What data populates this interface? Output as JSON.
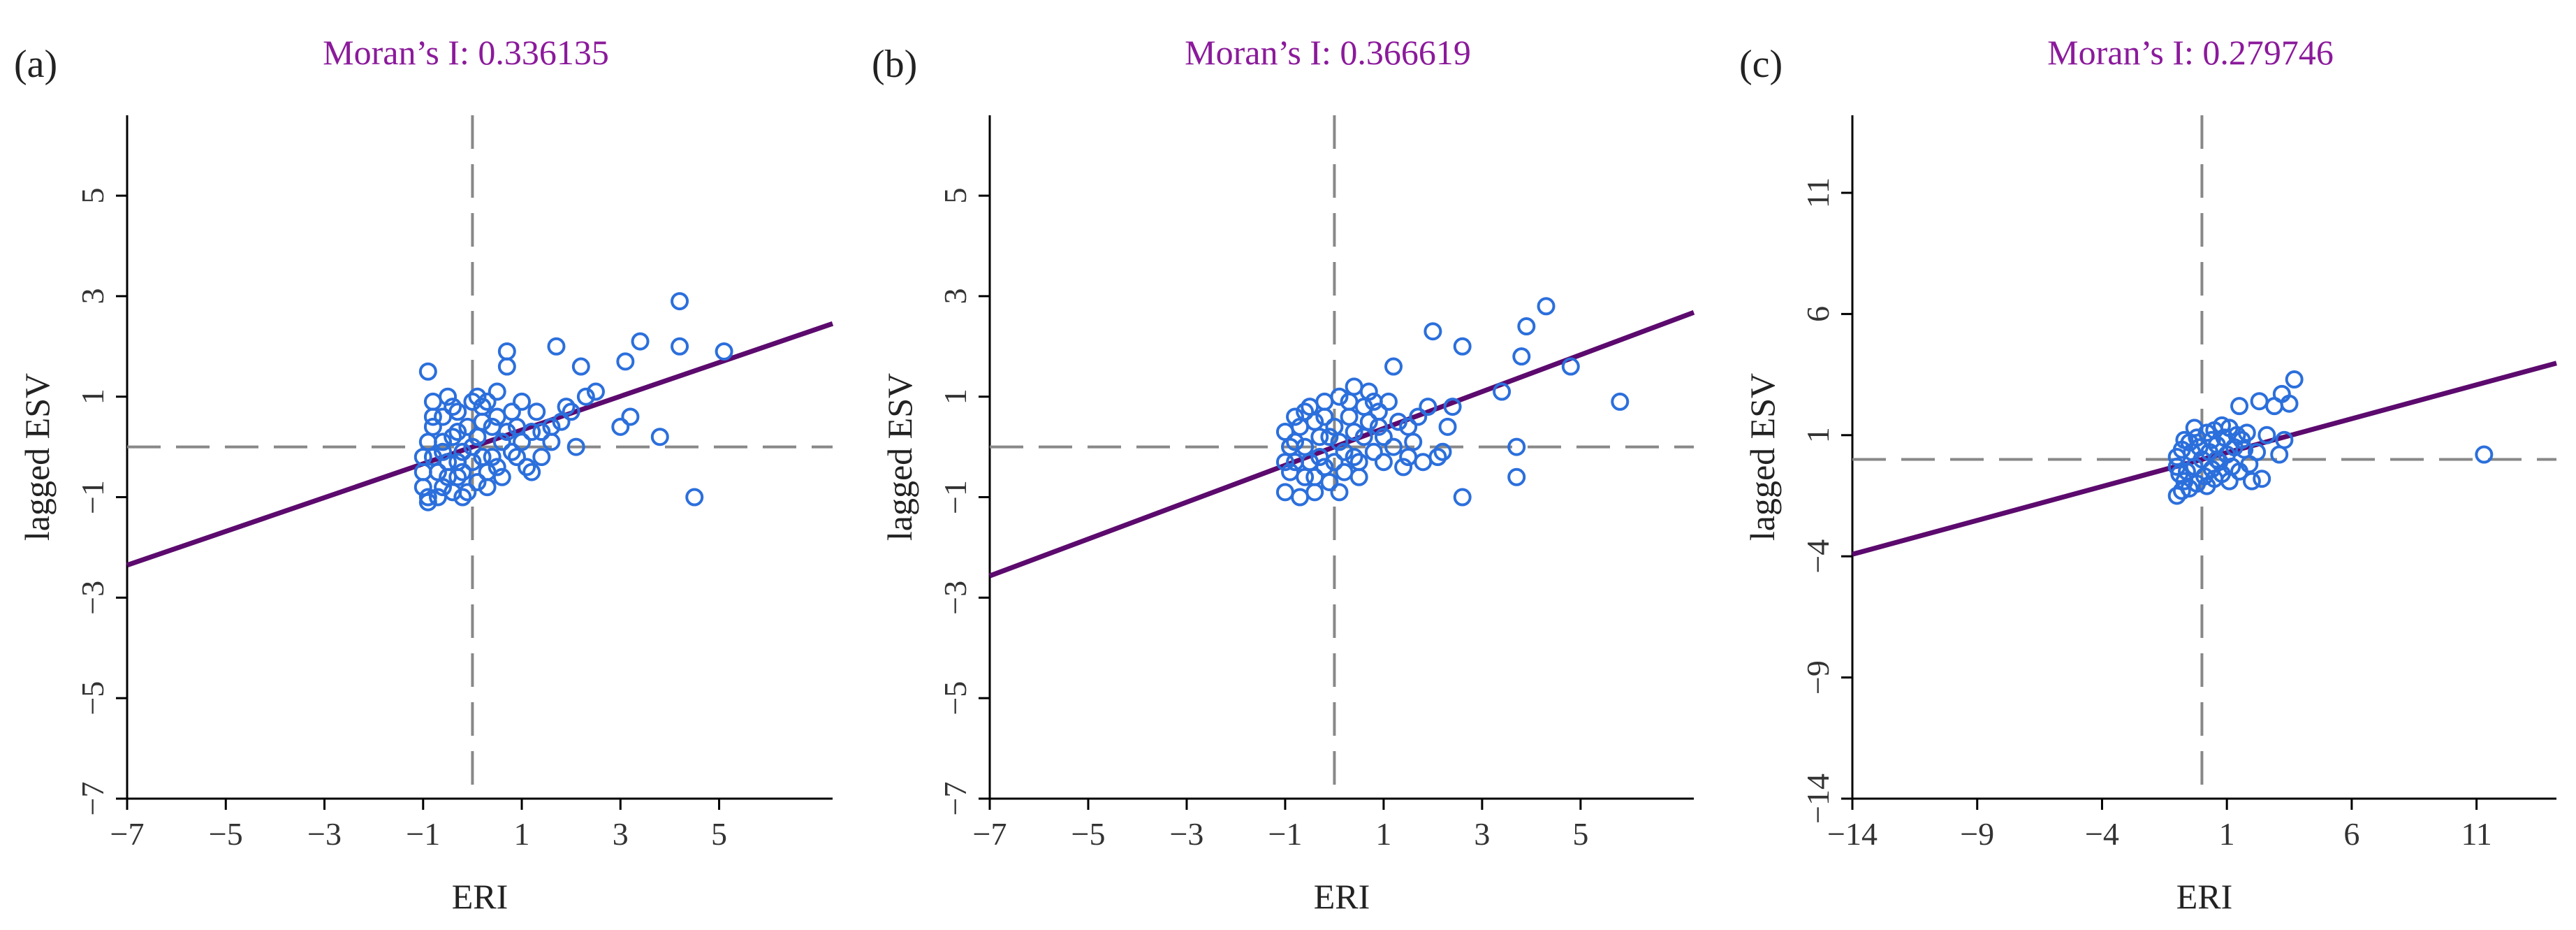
{
  "colors": {
    "regression": "#5c0a6e",
    "title": "#8b1a9b",
    "points": "#2b6fdc",
    "axes": "#000000",
    "dashed": "#888888"
  },
  "chart_data": [
    {
      "type": "scatter",
      "panel_label": "(a)",
      "title": "Moran’s I: 0.336135",
      "xlabel": "ERI",
      "ylabel": "lagged ESV",
      "xlim": [
        -7,
        7.3
      ],
      "ylim": [
        -7,
        6.6
      ],
      "xticks": [
        -7,
        -5,
        -3,
        -1,
        1,
        3,
        5
      ],
      "yticks": [
        -7,
        -5,
        -3,
        -1,
        1,
        3,
        5
      ],
      "xtick_labels": [
        "−7",
        "−5",
        "−3",
        "−1",
        "1",
        "3",
        "5"
      ],
      "ytick_labels": [
        "−7",
        "−5",
        "−3",
        "−1",
        "1",
        "3",
        "5"
      ],
      "regression": {
        "slope": 0.336135,
        "intercept": 0.0
      },
      "crosshair": {
        "x": 0,
        "y": 0
      },
      "points": [
        [
          4.2,
          2.9
        ],
        [
          3.4,
          2.1
        ],
        [
          3.1,
          1.7
        ],
        [
          4.2,
          2.0
        ],
        [
          5.1,
          1.9
        ],
        [
          1.7,
          2.0
        ],
        [
          0.7,
          1.9
        ],
        [
          0.7,
          1.6
        ],
        [
          2.2,
          1.6
        ],
        [
          2.5,
          1.1
        ],
        [
          2.3,
          1.0
        ],
        [
          1.9,
          0.8
        ],
        [
          3.2,
          0.6
        ],
        [
          3.0,
          0.4
        ],
        [
          3.8,
          0.2
        ],
        [
          4.5,
          -1.0
        ],
        [
          2.1,
          0.0
        ],
        [
          1.6,
          0.4
        ],
        [
          1.3,
          0.7
        ],
        [
          1.0,
          0.9
        ],
        [
          -0.9,
          1.5
        ],
        [
          -0.5,
          1.0
        ],
        [
          0.0,
          0.9
        ],
        [
          0.5,
          1.1
        ],
        [
          -0.8,
          0.9
        ],
        [
          -0.3,
          0.7
        ],
        [
          0.2,
          0.8
        ],
        [
          0.8,
          0.7
        ],
        [
          1.2,
          0.3
        ],
        [
          1.6,
          0.1
        ],
        [
          1.4,
          0.3
        ],
        [
          0.9,
          -0.2
        ],
        [
          0.6,
          -0.6
        ],
        [
          0.3,
          -0.5
        ],
        [
          0.0,
          -0.3
        ],
        [
          -0.3,
          -0.6
        ],
        [
          -0.6,
          -0.8
        ],
        [
          -0.9,
          -1.0
        ],
        [
          -1.0,
          -0.5
        ],
        [
          -1.0,
          -0.2
        ],
        [
          -0.9,
          0.1
        ],
        [
          -0.8,
          0.4
        ],
        [
          -0.6,
          0.6
        ],
        [
          -0.4,
          0.2
        ],
        [
          -0.2,
          -0.1
        ],
        [
          0.1,
          0.2
        ],
        [
          0.4,
          0.4
        ],
        [
          0.6,
          0.1
        ],
        [
          0.8,
          -0.1
        ],
        [
          0.2,
          -0.2
        ],
        [
          -0.1,
          0.4
        ],
        [
          -0.5,
          -0.3
        ],
        [
          -0.7,
          -0.5
        ],
        [
          -0.4,
          -0.9
        ],
        [
          -0.1,
          -0.9
        ],
        [
          0.3,
          -0.8
        ],
        [
          -0.8,
          -0.2
        ],
        [
          -0.6,
          0.1
        ],
        [
          -0.3,
          0.3
        ],
        [
          0.0,
          0.0
        ],
        [
          0.2,
          0.5
        ],
        [
          0.5,
          0.6
        ],
        [
          0.7,
          0.3
        ],
        [
          1.0,
          0.1
        ],
        [
          1.1,
          -0.4
        ],
        [
          0.4,
          -0.2
        ],
        [
          -0.2,
          -0.5
        ],
        [
          -0.5,
          -0.6
        ],
        [
          -1.0,
          -0.8
        ],
        [
          -0.9,
          -1.1
        ],
        [
          -0.7,
          -1.0
        ],
        [
          -0.2,
          -1.0
        ],
        [
          0.1,
          -0.7
        ],
        [
          0.5,
          -0.4
        ],
        [
          1.2,
          -0.5
        ],
        [
          1.4,
          -0.2
        ],
        [
          -0.4,
          0.8
        ],
        [
          0.1,
          1.0
        ],
        [
          0.3,
          0.9
        ],
        [
          -0.6,
          -0.1
        ],
        [
          -0.8,
          0.6
        ],
        [
          0.9,
          0.4
        ],
        [
          1.8,
          0.5
        ],
        [
          2.0,
          0.7
        ],
        [
          -0.3,
          -0.3
        ]
      ]
    },
    {
      "type": "scatter",
      "panel_label": "(b)",
      "title": "Moran’s I: 0.366619",
      "xlabel": "ERI",
      "ylabel": "lagged ESV",
      "xlim": [
        -7,
        7.3
      ],
      "ylim": [
        -7,
        6.6
      ],
      "xticks": [
        -7,
        -5,
        -3,
        -1,
        1,
        3,
        5
      ],
      "yticks": [
        -7,
        -5,
        -3,
        -1,
        1,
        3,
        5
      ],
      "xtick_labels": [
        "−7",
        "−5",
        "−3",
        "−1",
        "1",
        "3",
        "5"
      ],
      "ytick_labels": [
        "−7",
        "−5",
        "−3",
        "−1",
        "1",
        "3",
        "5"
      ],
      "regression": {
        "slope": 0.366619,
        "intercept": 0.0
      },
      "crosshair": {
        "x": 0,
        "y": 0
      },
      "points": [
        [
          4.3,
          2.8
        ],
        [
          3.9,
          2.4
        ],
        [
          3.8,
          1.8
        ],
        [
          2.0,
          2.3
        ],
        [
          2.6,
          2.0
        ],
        [
          4.8,
          1.6
        ],
        [
          3.4,
          1.1
        ],
        [
          5.8,
          0.9
        ],
        [
          1.2,
          1.6
        ],
        [
          2.4,
          0.8
        ],
        [
          3.7,
          0.0
        ],
        [
          3.7,
          -0.6
        ],
        [
          2.6,
          -1.0
        ],
        [
          2.2,
          -0.1
        ],
        [
          1.9,
          0.8
        ],
        [
          1.5,
          0.4
        ],
        [
          1.1,
          0.9
        ],
        [
          0.7,
          1.1
        ],
        [
          0.4,
          1.2
        ],
        [
          0.1,
          1.0
        ],
        [
          -0.2,
          0.9
        ],
        [
          -0.5,
          0.8
        ],
        [
          -0.8,
          0.6
        ],
        [
          -1.0,
          0.3
        ],
        [
          -0.9,
          0.0
        ],
        [
          -0.8,
          -0.3
        ],
        [
          -0.6,
          -0.6
        ],
        [
          -0.4,
          -0.9
        ],
        [
          -0.1,
          -0.7
        ],
        [
          0.2,
          -0.5
        ],
        [
          0.5,
          -0.3
        ],
        [
          0.8,
          -0.1
        ],
        [
          1.0,
          0.2
        ],
        [
          1.3,
          0.5
        ],
        [
          1.6,
          0.1
        ],
        [
          1.8,
          -0.3
        ],
        [
          2.1,
          -0.2
        ],
        [
          0.9,
          0.7
        ],
        [
          0.6,
          0.8
        ],
        [
          0.3,
          0.6
        ],
        [
          0.0,
          0.4
        ],
        [
          -0.3,
          0.2
        ],
        [
          -0.6,
          0.0
        ],
        [
          -0.9,
          -0.5
        ],
        [
          -1.0,
          -0.9
        ],
        [
          -0.7,
          -1.0
        ],
        [
          -0.3,
          -0.2
        ],
        [
          0.1,
          0.1
        ],
        [
          0.4,
          0.3
        ],
        [
          0.7,
          0.5
        ],
        [
          1.0,
          -0.3
        ],
        [
          1.4,
          -0.4
        ],
        [
          0.5,
          -0.6
        ],
        [
          0.2,
          -0.1
        ],
        [
          -0.1,
          0.2
        ],
        [
          -0.4,
          0.5
        ],
        [
          -0.7,
          0.4
        ],
        [
          -0.5,
          -0.3
        ],
        [
          0.0,
          -0.3
        ],
        [
          0.3,
          0.9
        ],
        [
          0.6,
          0.2
        ],
        [
          0.9,
          0.4
        ],
        [
          1.2,
          0.0
        ],
        [
          -0.2,
          0.6
        ],
        [
          -0.8,
          0.1
        ],
        [
          -1.0,
          -0.3
        ],
        [
          0.8,
          0.9
        ],
        [
          1.7,
          0.6
        ],
        [
          2.3,
          0.4
        ],
        [
          -0.4,
          -0.6
        ],
        [
          0.1,
          -0.9
        ],
        [
          0.4,
          -0.2
        ],
        [
          -0.6,
          0.7
        ],
        [
          -0.2,
          -0.4
        ],
        [
          1.5,
          -0.2
        ]
      ]
    },
    {
      "type": "scatter",
      "panel_label": "(c)",
      "title": "Moran’s I: 0.279746",
      "xlabel": "ERI",
      "ylabel": "lagged ESV",
      "xlim": [
        -14,
        14.2
      ],
      "ylim": [
        -14,
        14.2
      ],
      "xticks": [
        -14,
        -9,
        -4,
        1,
        6,
        11
      ],
      "yticks": [
        -14,
        -9,
        -4,
        1,
        6,
        11
      ],
      "xtick_labels": [
        "−14",
        "−9",
        "−4",
        "1",
        "6",
        "11"
      ],
      "ytick_labels": [
        "−14",
        "−9",
        "−4",
        "1",
        "6",
        "11"
      ],
      "regression": {
        "slope": 0.279746,
        "intercept": 0.0
      },
      "crosshair": {
        "x": 0,
        "y": 0
      },
      "points": [
        [
          3.7,
          3.3
        ],
        [
          3.2,
          2.7
        ],
        [
          2.9,
          2.2
        ],
        [
          3.5,
          2.3
        ],
        [
          2.3,
          2.4
        ],
        [
          1.5,
          2.2
        ],
        [
          3.3,
          0.8
        ],
        [
          3.1,
          0.2
        ],
        [
          11.3,
          0.2
        ],
        [
          2.4,
          -0.8
        ],
        [
          2.0,
          -0.9
        ],
        [
          1.7,
          0.4
        ],
        [
          1.4,
          1.0
        ],
        [
          1.1,
          1.3
        ],
        [
          0.8,
          1.4
        ],
        [
          0.5,
          1.2
        ],
        [
          0.2,
          1.1
        ],
        [
          -0.2,
          0.9
        ],
        [
          -0.5,
          0.7
        ],
        [
          -0.8,
          0.4
        ],
        [
          -1.0,
          0.1
        ],
        [
          -1.0,
          -0.3
        ],
        [
          -0.9,
          -0.6
        ],
        [
          -0.7,
          -0.9
        ],
        [
          -0.5,
          -1.2
        ],
        [
          -0.2,
          -1.0
        ],
        [
          0.1,
          -0.7
        ],
        [
          0.4,
          -0.4
        ],
        [
          0.7,
          -0.1
        ],
        [
          1.0,
          0.2
        ],
        [
          1.3,
          0.5
        ],
        [
          1.6,
          0.8
        ],
        [
          1.9,
          -0.2
        ],
        [
          2.2,
          0.3
        ],
        [
          0.9,
          0.9
        ],
        [
          0.6,
          0.6
        ],
        [
          0.3,
          0.3
        ],
        [
          0.0,
          0.0
        ],
        [
          -0.3,
          -0.3
        ],
        [
          -0.6,
          -0.5
        ],
        [
          -0.8,
          -1.3
        ],
        [
          -1.0,
          -1.5
        ],
        [
          0.2,
          -1.1
        ],
        [
          0.5,
          -0.8
        ],
        [
          0.8,
          -0.6
        ],
        [
          1.2,
          -0.3
        ],
        [
          1.5,
          -0.5
        ],
        [
          -0.4,
          0.3
        ],
        [
          -0.7,
          0.8
        ],
        [
          -0.1,
          0.5
        ],
        [
          0.6,
          0.0
        ],
        [
          1.1,
          -0.9
        ],
        [
          1.8,
          1.1
        ],
        [
          2.6,
          1.0
        ],
        [
          -0.3,
          1.3
        ],
        [
          0.4,
          0.8
        ]
      ]
    }
  ]
}
